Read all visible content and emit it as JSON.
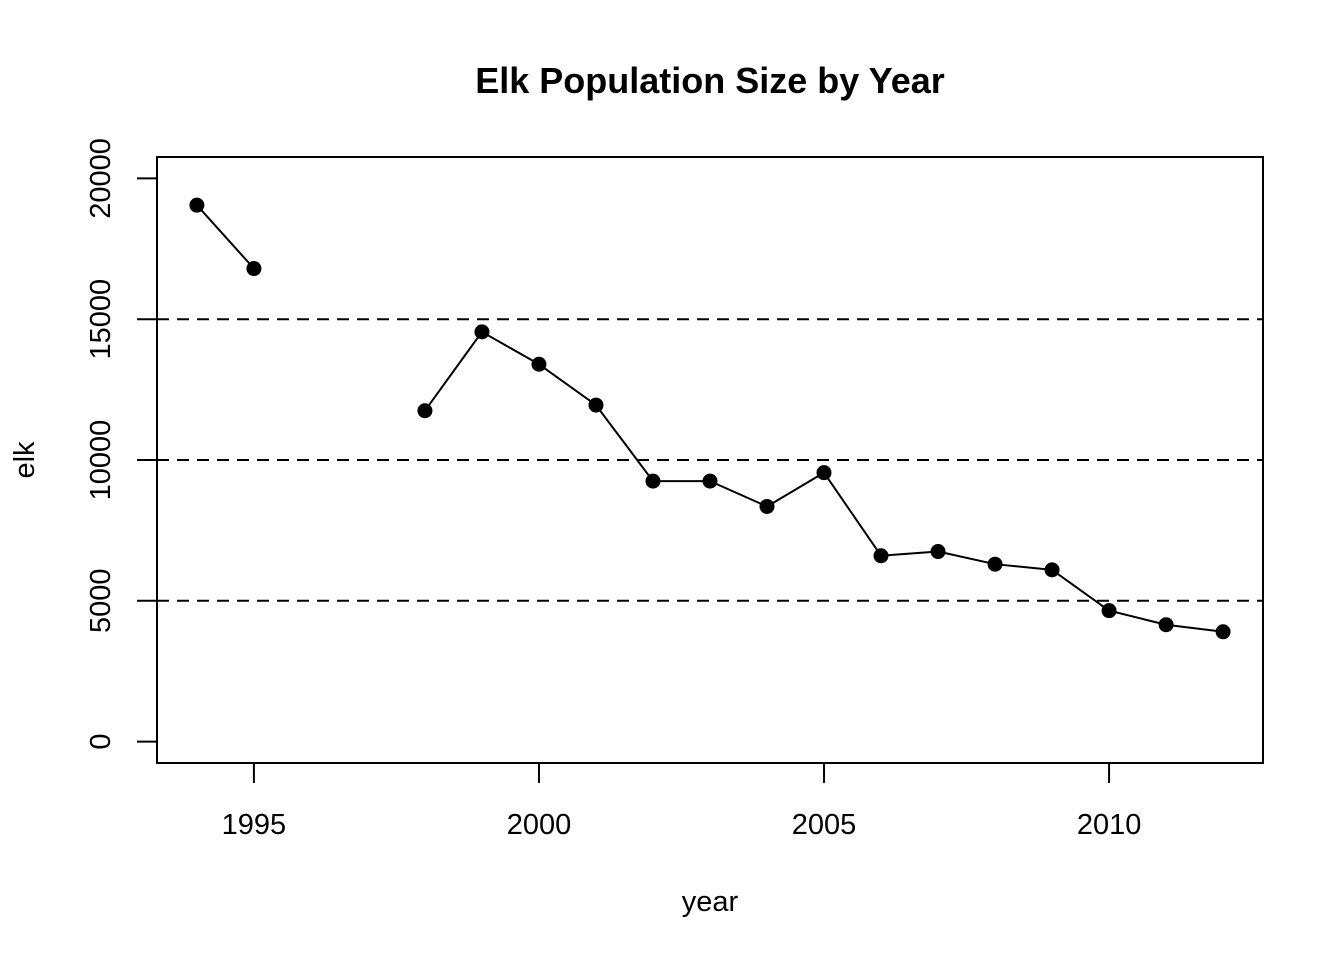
{
  "chart_data": {
    "type": "line",
    "title": "Elk Population Size by Year",
    "xlabel": "year",
    "ylabel": "elk",
    "xlim": [
      1993.3,
      2012.7
    ],
    "ylim": [
      -760,
      20760
    ],
    "x_ticks": [
      1995,
      2000,
      2005,
      2010
    ],
    "y_ticks": [
      0,
      5000,
      10000,
      15000,
      20000
    ],
    "reference_lines_y": [
      5000,
      10000,
      15000
    ],
    "reference_line_style": "dashed",
    "grid": false,
    "legend": "none",
    "point_style": "filled-circle",
    "line_color": "#000000",
    "point_color": "#000000",
    "series": [
      {
        "x": [
          1994,
          1995,
          1996,
          1997,
          1998,
          1999,
          2000,
          2001,
          2002,
          2003,
          2004,
          2005,
          2006,
          2007,
          2008,
          2009,
          2010,
          2011,
          2012
        ],
        "values": [
          19050,
          16800,
          null,
          null,
          11750,
          14550,
          13400,
          11950,
          9250,
          9250,
          8350,
          9550,
          6600,
          6750,
          6300,
          6100,
          4650,
          4150,
          3900
        ]
      }
    ]
  }
}
